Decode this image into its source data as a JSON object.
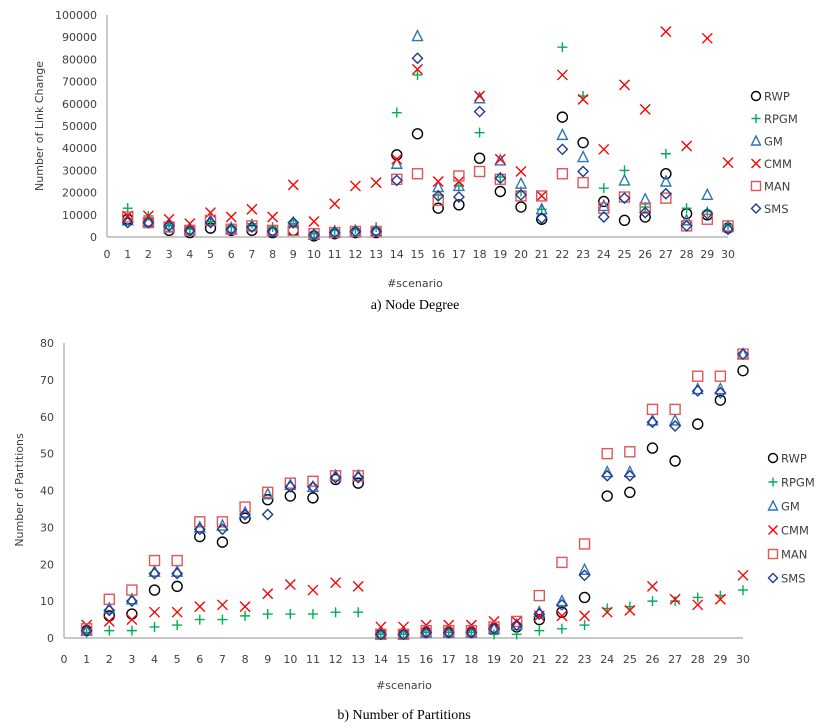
{
  "chart_data": [
    {
      "type": "scatter",
      "caption": "a) Node Degree",
      "title": "",
      "xlabel": "#scenario",
      "ylabel": "Number of Link Change",
      "xlim": [
        0,
        30
      ],
      "ylim": [
        0,
        100000
      ],
      "xticks": [
        0,
        1,
        2,
        3,
        4,
        5,
        6,
        7,
        8,
        9,
        10,
        11,
        12,
        13,
        14,
        15,
        16,
        17,
        18,
        19,
        20,
        21,
        22,
        23,
        24,
        25,
        26,
        27,
        28,
        29,
        30
      ],
      "yticks": [
        0,
        10000,
        20000,
        30000,
        40000,
        50000,
        60000,
        70000,
        80000,
        90000,
        100000
      ],
      "grid": false,
      "legend": "right",
      "x": [
        1,
        2,
        3,
        4,
        5,
        6,
        7,
        8,
        9,
        10,
        11,
        12,
        13,
        14,
        15,
        16,
        17,
        18,
        19,
        20,
        21,
        22,
        23,
        24,
        25,
        26,
        27,
        28,
        29,
        30
      ],
      "series": [
        {
          "name": "RWP",
          "marker": "circle",
          "color": "#000000",
          "values": [
            8000,
            6500,
            3000,
            2000,
            4000,
            3000,
            3000,
            2000,
            3000,
            500,
            1500,
            2000,
            2000,
            37000,
            46500,
            13000,
            14500,
            35500,
            20500,
            13500,
            8000,
            54000,
            42500,
            16000,
            7500,
            9000,
            28500,
            10500,
            10000,
            4000
          ]
        },
        {
          "name": "RPGM",
          "marker": "plus",
          "color": "#00b050",
          "values": [
            13000,
            9500,
            5000,
            3500,
            7000,
            4500,
            6000,
            4500,
            6000,
            1500,
            3000,
            3500,
            4500,
            56000,
            73000,
            19000,
            23000,
            47000,
            27000,
            20500,
            12500,
            85500,
            63500,
            22000,
            30000,
            13500,
            37500,
            13000,
            11500,
            5500
          ]
        },
        {
          "name": "GM",
          "marker": "triangle",
          "color": "#2e75b6",
          "values": [
            7500,
            7000,
            4500,
            3500,
            7500,
            4000,
            5000,
            3000,
            6500,
            1000,
            2500,
            2500,
            3000,
            33000,
            90500,
            22500,
            23000,
            62500,
            34500,
            24000,
            12500,
            46000,
            36000,
            14000,
            25500,
            17000,
            25000,
            7500,
            19000,
            4500
          ]
        },
        {
          "name": "CMM",
          "marker": "x",
          "color": "#ff0000",
          "values": [
            9500,
            9500,
            8000,
            6000,
            11000,
            9000,
            12500,
            9000,
            23500,
            7000,
            15000,
            23000,
            24500,
            35000,
            75500,
            25000,
            25000,
            63500,
            35000,
            29500,
            18500,
            73000,
            62000,
            39500,
            68500,
            57500,
            92500,
            41000,
            89500,
            33500
          ]
        },
        {
          "name": "MAN",
          "marker": "square",
          "color": "#e15759",
          "values": [
            9000,
            6500,
            4500,
            3000,
            7500,
            3500,
            5000,
            3000,
            3000,
            1500,
            2000,
            2500,
            2500,
            26000,
            28500,
            16500,
            27500,
            29500,
            26000,
            18500,
            18500,
            28500,
            24500,
            13000,
            18000,
            13000,
            17500,
            5000,
            8000,
            5000
          ]
        },
        {
          "name": "SMS",
          "marker": "diamond",
          "color": "#1f3a93",
          "values": [
            6500,
            6500,
            5000,
            3000,
            6500,
            3500,
            4500,
            2500,
            6500,
            1000,
            2000,
            2500,
            2500,
            25500,
            80500,
            18500,
            18000,
            56500,
            26500,
            19000,
            8500,
            39500,
            29500,
            9000,
            17500,
            11000,
            19500,
            5000,
            10500,
            3500
          ]
        }
      ]
    },
    {
      "type": "scatter",
      "caption": "b) Number of Partitions",
      "title": "",
      "xlabel": "#scenario",
      "ylabel": "Number of Partitions",
      "xlim": [
        0,
        30
      ],
      "ylim": [
        0,
        80
      ],
      "xticks": [
        0,
        1,
        2,
        3,
        4,
        5,
        6,
        7,
        8,
        9,
        10,
        11,
        12,
        13,
        14,
        15,
        16,
        17,
        18,
        19,
        20,
        21,
        22,
        23,
        24,
        25,
        26,
        27,
        28,
        29,
        30
      ],
      "yticks": [
        0,
        10,
        20,
        30,
        40,
        50,
        60,
        70,
        80
      ],
      "grid": false,
      "legend": "right",
      "x": [
        1,
        2,
        3,
        4,
        5,
        6,
        7,
        8,
        9,
        10,
        11,
        12,
        13,
        14,
        15,
        16,
        17,
        18,
        19,
        20,
        21,
        22,
        23,
        24,
        25,
        26,
        27,
        28,
        29,
        30
      ],
      "series": [
        {
          "name": "RWP",
          "marker": "circle",
          "color": "#000000",
          "values": [
            2,
            6,
            6.5,
            13,
            14,
            27.5,
            26,
            32.5,
            37.5,
            38.5,
            38,
            43,
            42,
            1,
            1,
            1.5,
            1.5,
            1.5,
            2.5,
            3,
            5,
            7,
            11,
            38.5,
            39.5,
            51.5,
            48,
            58,
            64.5,
            72.5
          ]
        },
        {
          "name": "RPGM",
          "marker": "plus",
          "color": "#00b050",
          "values": [
            1.5,
            2,
            2,
            3,
            3.5,
            5,
            5,
            6,
            6.5,
            6.5,
            6.5,
            7,
            7,
            1,
            1,
            1.5,
            1.5,
            1.5,
            1,
            1,
            2,
            2.5,
            3.5,
            8,
            8.5,
            10,
            10,
            11,
            11.5,
            13
          ]
        },
        {
          "name": "GM",
          "marker": "triangle",
          "color": "#2e75b6",
          "values": [
            2,
            8,
            10.5,
            18,
            18,
            30,
            30.5,
            34,
            39,
            41.5,
            41,
            44,
            44,
            1,
            1,
            1.5,
            1.5,
            1.5,
            2.5,
            3.5,
            7,
            10,
            18.5,
            45,
            45,
            59,
            59,
            67.5,
            67.5,
            77
          ]
        },
        {
          "name": "CMM",
          "marker": "x",
          "color": "#ff0000",
          "values": [
            3.5,
            4.5,
            5,
            7,
            7,
            8.5,
            9,
            8.5,
            12,
            14.5,
            13,
            15,
            14,
            3,
            3,
            3.5,
            3.5,
            3.5,
            4.5,
            4.5,
            6,
            6,
            6,
            7,
            7.5,
            14,
            10.5,
            9,
            10.5,
            17
          ]
        },
        {
          "name": "MAN",
          "marker": "square",
          "color": "#e15759",
          "values": [
            2.5,
            10.5,
            13,
            21,
            21,
            31.5,
            31.5,
            35.5,
            39.5,
            42,
            42.5,
            44,
            44,
            1,
            1,
            2,
            2,
            2,
            3,
            4.5,
            11.5,
            20.5,
            25.5,
            50,
            50.5,
            62,
            62,
            71,
            71,
            77
          ]
        },
        {
          "name": "SMS",
          "marker": "diamond",
          "color": "#1f3a93",
          "values": [
            2,
            7.5,
            10,
            17.5,
            17.5,
            29.5,
            29.5,
            33.5,
            33.5,
            41,
            41,
            43.5,
            43.5,
            1,
            1,
            1.5,
            1.5,
            1.5,
            2.5,
            3.5,
            6.5,
            9,
            17,
            44,
            44,
            58.5,
            57.5,
            67,
            66.5,
            77
          ]
        }
      ]
    }
  ]
}
